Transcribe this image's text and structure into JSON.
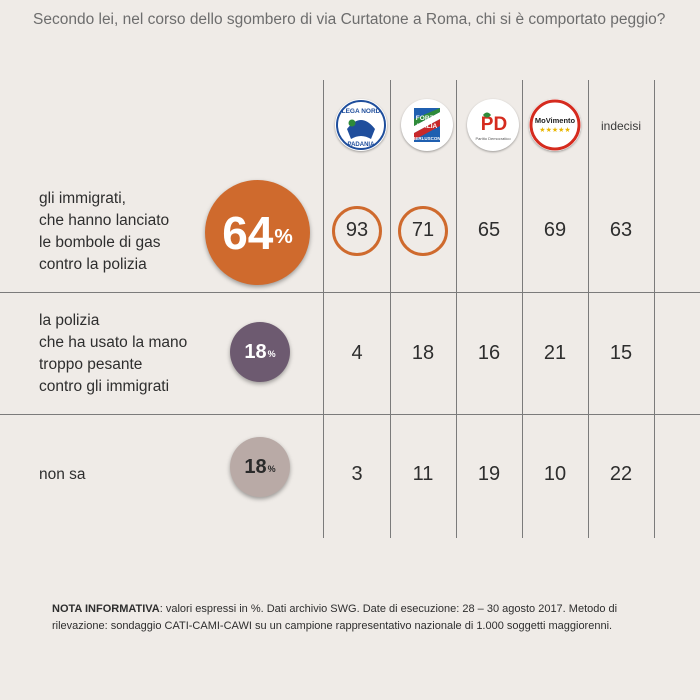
{
  "question": "Secondo lei, nel corso dello sgombero di via Curtatone a Roma, chi si è comportato peggio?",
  "chart_data": {
    "type": "table",
    "unit": "%",
    "columns": [
      "Lega Nord",
      "Forza Italia",
      "Partito Democratico",
      "Movimento 5 Stelle",
      "indecisi"
    ],
    "column_labels": [
      "",
      "",
      "",
      "",
      "indecisi"
    ],
    "rows": [
      {
        "label_lines": [
          "gli immigrati,",
          "che hanno lanciato",
          "le bombole di gas",
          "contro la polizia"
        ],
        "total": 64,
        "values": [
          93,
          71,
          65,
          69,
          63
        ],
        "highlighted": [
          true,
          true,
          false,
          false,
          false
        ]
      },
      {
        "label_lines": [
          "la polizia",
          "che ha usato la mano",
          "troppo pesante",
          "contro gli immigrati"
        ],
        "total": 18,
        "values": [
          4,
          18,
          16,
          21,
          15
        ],
        "highlighted": [
          false,
          false,
          false,
          false,
          false
        ]
      },
      {
        "label_lines": [
          "non sa"
        ],
        "total": 18,
        "values": [
          3,
          11,
          19,
          10,
          22
        ],
        "highlighted": [
          false,
          false,
          false,
          false,
          false
        ]
      }
    ]
  },
  "logos": {
    "lega": {
      "top": "LEGA NORD",
      "bottom": "PADANIA"
    },
    "fi": {
      "line1": "FORZA",
      "line2": "ITALIA",
      "line3": "BERLUSCONI"
    },
    "pd": {
      "mark": "PD",
      "sub": "Partito Democratico"
    },
    "m5s": {
      "mark": "MoVimento",
      "stars": "★★★★★"
    }
  },
  "note": {
    "bold": "NOTA INFORMATIVA",
    "text": ": valori espressi in %. Dati archivio SWG. Date di esecuzione: 28 – 30 agosto 2017. Metodo di rilevazione: sondaggio CATI-CAMI-CAWI su un campione rappresentativo nazionale di 1.000 soggetti maggiorenni."
  },
  "colors": {
    "background": "#efebe7",
    "bubble_immigrati": "#cf6a2d",
    "bubble_polizia": "#6d5a70",
    "bubble_nonsa": "#b9aaa6",
    "highlight_ring": "#cf6a2d",
    "lines": "#7b7b7b"
  }
}
